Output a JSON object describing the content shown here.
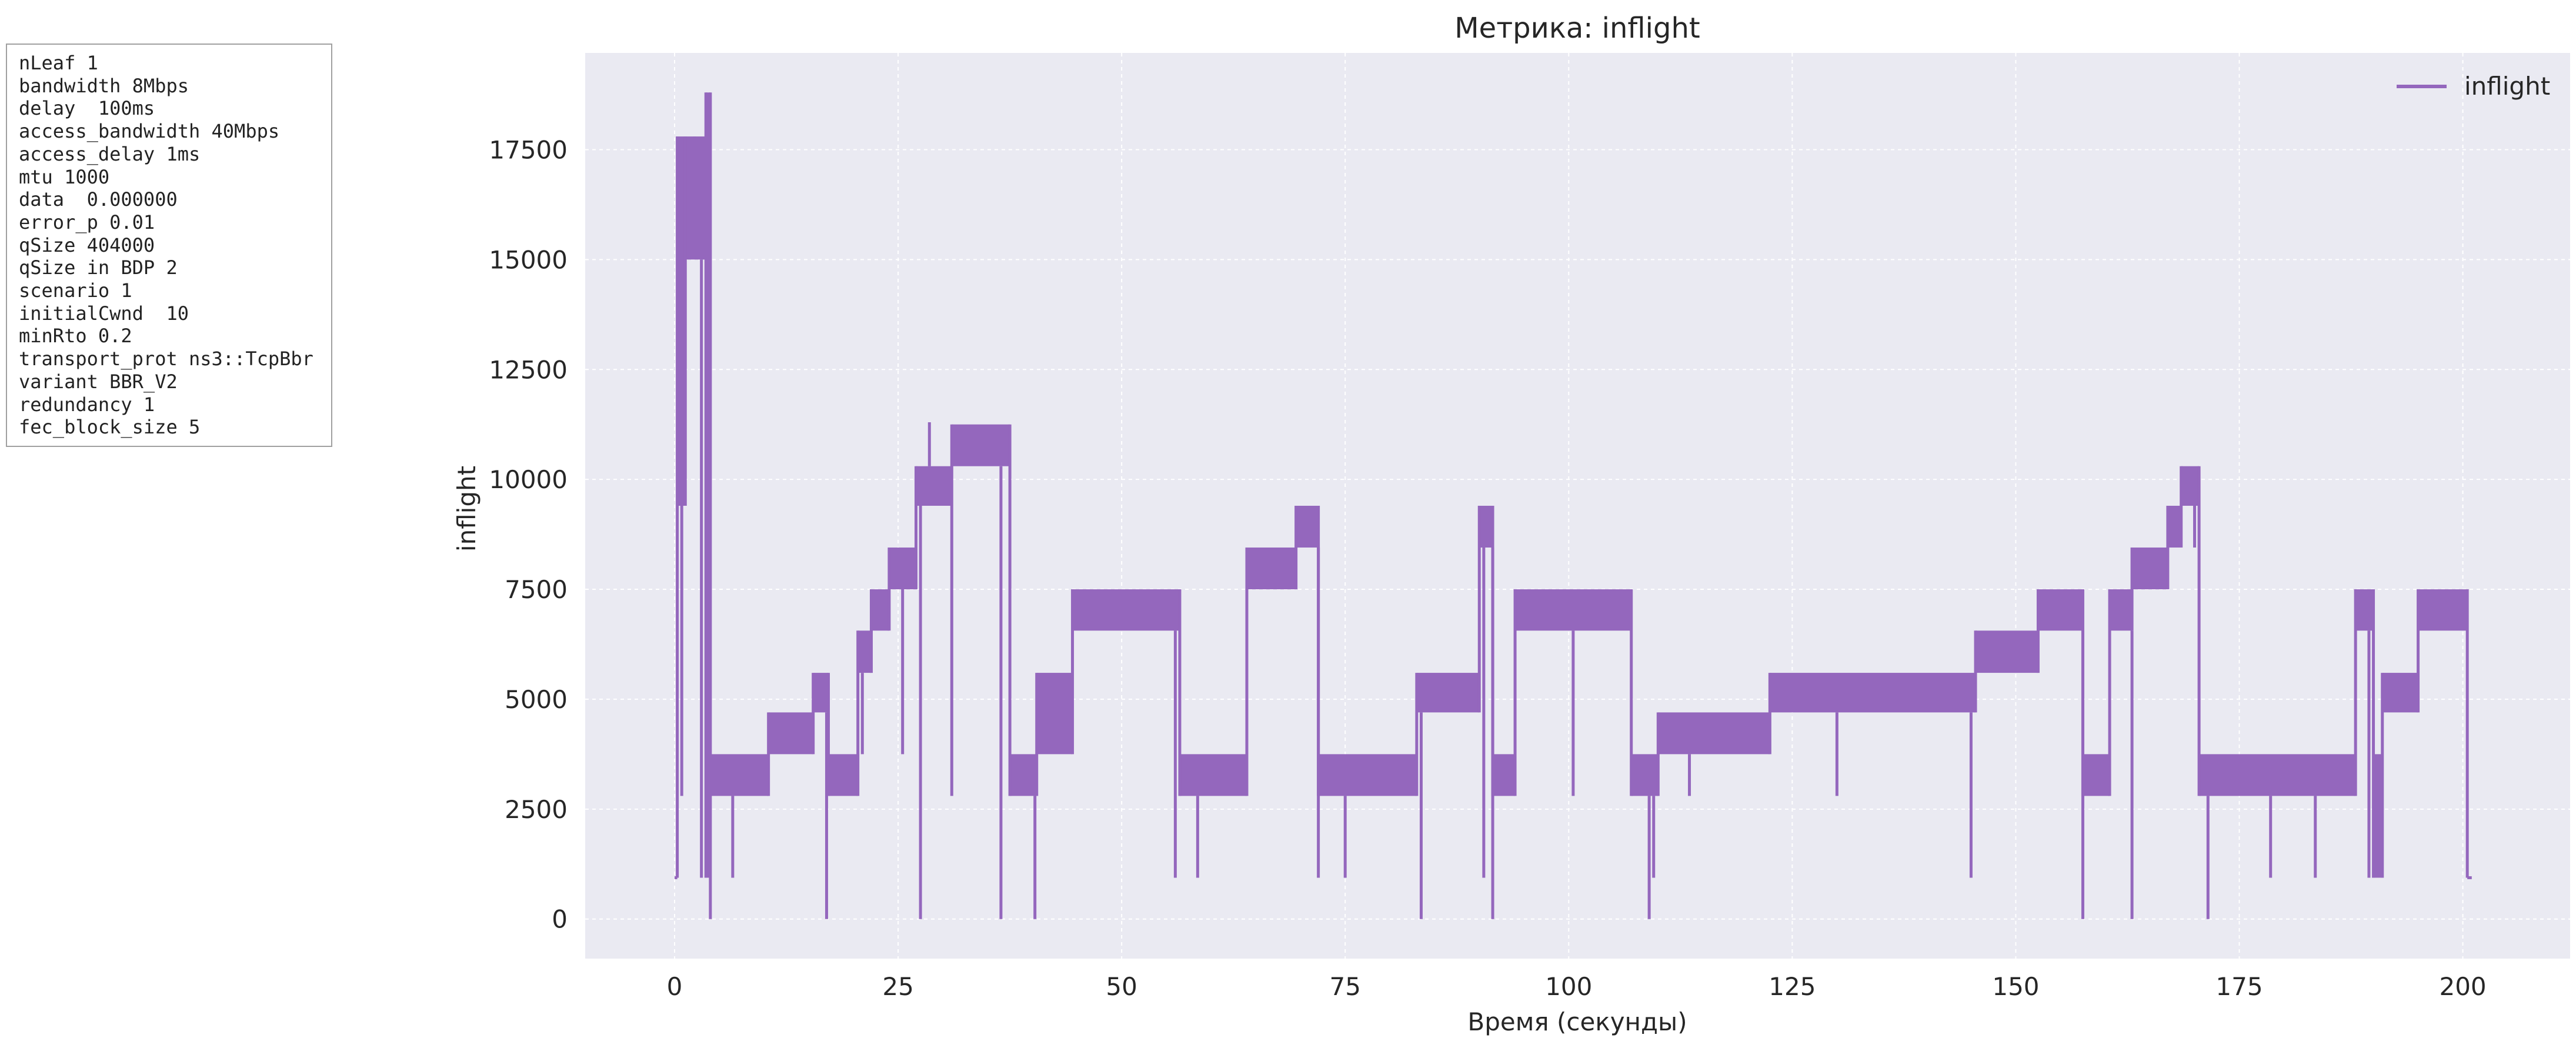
{
  "params": [
    "nLeaf 1",
    "bandwidth 8Mbps",
    "delay  100ms",
    "access_bandwidth 40Mbps",
    "access_delay 1ms",
    "mtu 1000",
    "data  0.000000",
    "error_p 0.01",
    "qSize 404000",
    "qSize in BDP 2",
    "scenario 1",
    "initialCwnd  10",
    "minRto 0.2",
    "transport_prot ns3::TcpBbr",
    "variant BBR_V2",
    "redundancy 1",
    "fec_block_size 5"
  ],
  "chart_data": {
    "type": "line",
    "title": "Метрика: inflight",
    "xlabel": "Время (секунды)",
    "ylabel": "inflight",
    "xlim": [
      -10,
      212
    ],
    "ylim": [
      -900,
      19700
    ],
    "xticks": [
      0,
      25,
      50,
      75,
      100,
      125,
      150,
      175,
      200
    ],
    "yticks": [
      0,
      2500,
      5000,
      7500,
      10000,
      12500,
      15000,
      17500
    ],
    "grid": true,
    "legend_position": "top-right",
    "colors": {
      "series": "#9467bd",
      "plot_bg": "#eaeaf2",
      "grid": "#ffffff"
    },
    "series": [
      {
        "name": "inflight",
        "bands": [
          [
            0.0,
            0.3,
            940,
            940
          ],
          [
            0.3,
            1.2,
            9400,
            17800
          ],
          [
            1.2,
            3.5,
            15000,
            17800
          ],
          [
            3.5,
            4.0,
            940,
            18800
          ],
          [
            4.0,
            10.5,
            2800,
            3750
          ],
          [
            10.5,
            15.5,
            3750,
            4700
          ],
          [
            15.5,
            17.2,
            4700,
            5600
          ],
          [
            17.2,
            20.5,
            2800,
            3750
          ],
          [
            20.5,
            22.0,
            5600,
            6560
          ],
          [
            22.0,
            24.0,
            6560,
            7500
          ],
          [
            24.0,
            27.0,
            7500,
            8450
          ],
          [
            27.0,
            31.0,
            9400,
            10300
          ],
          [
            31.0,
            37.5,
            10300,
            11250
          ],
          [
            37.5,
            40.5,
            2800,
            3750
          ],
          [
            40.5,
            44.5,
            3750,
            5600
          ],
          [
            44.5,
            56.5,
            6560,
            7500
          ],
          [
            56.5,
            64.0,
            2800,
            3750
          ],
          [
            64.0,
            69.5,
            7500,
            8450
          ],
          [
            69.5,
            72.0,
            8450,
            9400
          ],
          [
            72.0,
            83.0,
            2800,
            3750
          ],
          [
            83.0,
            90.0,
            4700,
            5600
          ],
          [
            90.0,
            91.5,
            8450,
            9400
          ],
          [
            91.5,
            94.0,
            2800,
            3750
          ],
          [
            94.0,
            107.0,
            6560,
            7500
          ],
          [
            107.0,
            110.0,
            2800,
            3750
          ],
          [
            110.0,
            122.5,
            3750,
            4700
          ],
          [
            122.5,
            145.5,
            4700,
            5600
          ],
          [
            145.5,
            152.5,
            5600,
            6560
          ],
          [
            152.5,
            157.5,
            6560,
            7500
          ],
          [
            157.5,
            160.5,
            2800,
            3750
          ],
          [
            160.5,
            163.0,
            6560,
            7500
          ],
          [
            163.0,
            167.0,
            7500,
            8450
          ],
          [
            167.0,
            168.5,
            8450,
            9400
          ],
          [
            168.5,
            170.5,
            9400,
            10300
          ],
          [
            170.5,
            188.0,
            2800,
            3750
          ],
          [
            188.0,
            190.0,
            6560,
            7500
          ],
          [
            190.0,
            191.0,
            940,
            3750
          ],
          [
            191.0,
            195.0,
            4700,
            5600
          ],
          [
            195.0,
            200.5,
            6560,
            7500
          ],
          [
            200.5,
            201.0,
            940,
            940
          ]
        ],
        "spikes": [
          [
            0.8,
            2800
          ],
          [
            2.2,
            16000
          ],
          [
            3.0,
            940
          ],
          [
            4.0,
            0
          ],
          [
            6.5,
            940
          ],
          [
            17.0,
            0
          ],
          [
            21.0,
            3750
          ],
          [
            25.5,
            3750
          ],
          [
            27.5,
            0
          ],
          [
            28.5,
            11300
          ],
          [
            31.0,
            2800
          ],
          [
            36.5,
            0
          ],
          [
            40.3,
            0
          ],
          [
            56.0,
            940
          ],
          [
            58.5,
            940
          ],
          [
            72.0,
            940
          ],
          [
            75.0,
            940
          ],
          [
            83.5,
            0
          ],
          [
            90.5,
            940
          ],
          [
            91.5,
            0
          ],
          [
            100.5,
            2800
          ],
          [
            109.0,
            0
          ],
          [
            109.5,
            940
          ],
          [
            113.5,
            2800
          ],
          [
            130.0,
            2800
          ],
          [
            145.0,
            940
          ],
          [
            157.5,
            0
          ],
          [
            163.0,
            0
          ],
          [
            170.0,
            8450
          ],
          [
            171.5,
            0
          ],
          [
            178.5,
            940
          ],
          [
            183.5,
            940
          ],
          [
            189.5,
            940
          ]
        ]
      }
    ]
  }
}
